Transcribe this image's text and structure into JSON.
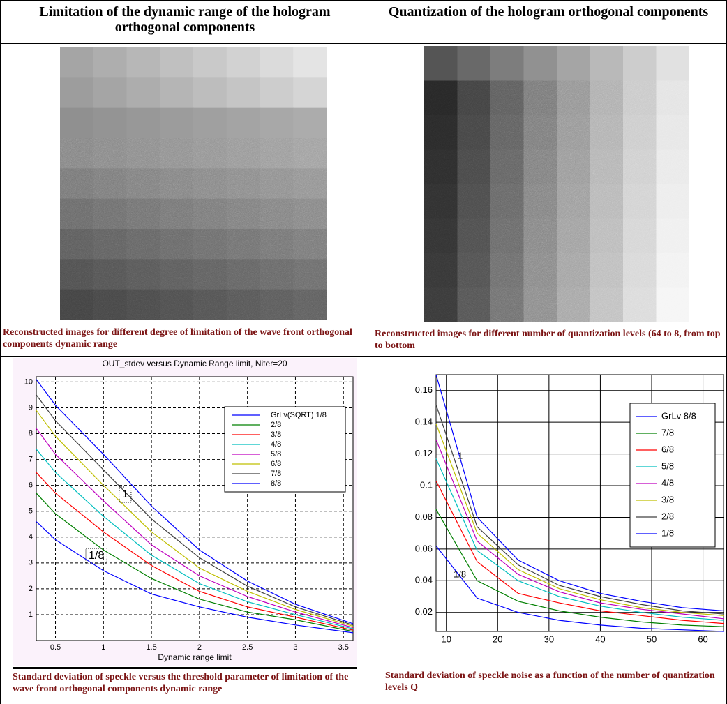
{
  "table": {
    "headers": [
      "Limitation of the dynamic range of the hologram orthogonal components",
      "Quantization of the hologram orthogonal components"
    ],
    "captions": [
      "Reconstructed images for different degree of limitation of the wave front orthogonal components dynamic range",
      "Reconstructed images for different number of quantization levels (64 to 8, from top to bottom",
      "Standard deviation of speckle versus the threshold parameter of limitation of the wave front orthogonal components dynamic range",
      "Standard deviation of speckle noise as a function of the number of quantization levels Q"
    ]
  },
  "chart_data": [
    {
      "type": "line",
      "title": "OUT_stdev versus Dynamic Range limit, Niter=20",
      "x_label": "Dynamic range limit",
      "x": [
        0.3,
        0.5,
        1,
        1.5,
        2,
        2.5,
        3,
        3.6
      ],
      "xlim": [
        0.3,
        3.6
      ],
      "xticks": [
        0.5,
        1,
        1.5,
        2,
        2.5,
        3,
        3.5
      ],
      "ylim": [
        0,
        10.2
      ],
      "yticks": [
        1,
        2,
        3,
        4,
        5,
        6,
        7,
        8,
        9,
        10
      ],
      "grid": "dashed",
      "legend": "upper right",
      "annotations": [
        "1",
        "1/8"
      ],
      "series": [
        {
          "name": "GrLv(SQRT) 1/8",
          "color": "#0000ff",
          "values": [
            4.6,
            3.9,
            2.7,
            1.8,
            1.3,
            0.9,
            0.6,
            0.3
          ]
        },
        {
          "name": "2/8",
          "color": "#008000",
          "values": [
            5.7,
            4.9,
            3.5,
            2.4,
            1.6,
            1.1,
            0.8,
            0.35
          ]
        },
        {
          "name": "3/8",
          "color": "#ff0000",
          "values": [
            6.5,
            5.7,
            4.2,
            2.9,
            1.9,
            1.3,
            0.9,
            0.4
          ]
        },
        {
          "name": "4/8",
          "color": "#00bfbf",
          "values": [
            7.4,
            6.5,
            4.8,
            3.3,
            2.2,
            1.5,
            1.0,
            0.45
          ]
        },
        {
          "name": "5/8",
          "color": "#bf00bf",
          "values": [
            8.2,
            7.2,
            5.4,
            3.7,
            2.5,
            1.7,
            1.1,
            0.5
          ]
        },
        {
          "name": "6/8",
          "color": "#bfbf00",
          "values": [
            8.9,
            7.9,
            6.0,
            4.2,
            2.8,
            1.9,
            1.2,
            0.55
          ]
        },
        {
          "name": "7/8",
          "color": "#404040",
          "values": [
            9.5,
            8.5,
            6.6,
            4.7,
            3.2,
            2.1,
            1.3,
            0.6
          ]
        },
        {
          "name": "8/8",
          "color": "#0000ff",
          "values": [
            10.1,
            9.1,
            7.2,
            5.2,
            3.5,
            2.3,
            1.4,
            0.65
          ]
        }
      ]
    },
    {
      "type": "line",
      "x": [
        8,
        16,
        24,
        32,
        40,
        48,
        56,
        64
      ],
      "xlim": [
        8,
        64
      ],
      "xticks": [
        10,
        20,
        30,
        40,
        50,
        60
      ],
      "ylim": [
        0.008,
        0.17
      ],
      "yticks": [
        0.02,
        0.04,
        0.06,
        0.08,
        0.1,
        0.12,
        0.14,
        0.16
      ],
      "grid": "solid",
      "legend": "upper right",
      "annotations": [
        "1",
        "1/8"
      ],
      "series": [
        {
          "name": "GrLv 8/8",
          "color": "#0000ff",
          "values": [
            0.062,
            0.029,
            0.02,
            0.015,
            0.012,
            0.01,
            0.009,
            0.008
          ]
        },
        {
          "name": "7/8",
          "color": "#008000",
          "values": [
            0.085,
            0.04,
            0.027,
            0.021,
            0.017,
            0.014,
            0.012,
            0.011
          ]
        },
        {
          "name": "6/8",
          "color": "#ff0000",
          "values": [
            0.103,
            0.052,
            0.032,
            0.026,
            0.021,
            0.018,
            0.015,
            0.013
          ]
        },
        {
          "name": "5/8",
          "color": "#00bfbf",
          "values": [
            0.117,
            0.059,
            0.04,
            0.03,
            0.024,
            0.02,
            0.017,
            0.015
          ]
        },
        {
          "name": "4/8",
          "color": "#bf00bf",
          "values": [
            0.129,
            0.065,
            0.044,
            0.033,
            0.026,
            0.022,
            0.019,
            0.016
          ]
        },
        {
          "name": "3/8",
          "color": "#bfbf00",
          "values": [
            0.139,
            0.07,
            0.047,
            0.035,
            0.028,
            0.023,
            0.02,
            0.018
          ]
        },
        {
          "name": "2/8",
          "color": "#404040",
          "values": [
            0.151,
            0.074,
            0.05,
            0.037,
            0.03,
            0.025,
            0.021,
            0.019
          ]
        },
        {
          "name": "1/8",
          "color": "#0000ff",
          "values": [
            0.17,
            0.08,
            0.053,
            0.04,
            0.032,
            0.027,
            0.023,
            0.021
          ]
        }
      ]
    }
  ]
}
